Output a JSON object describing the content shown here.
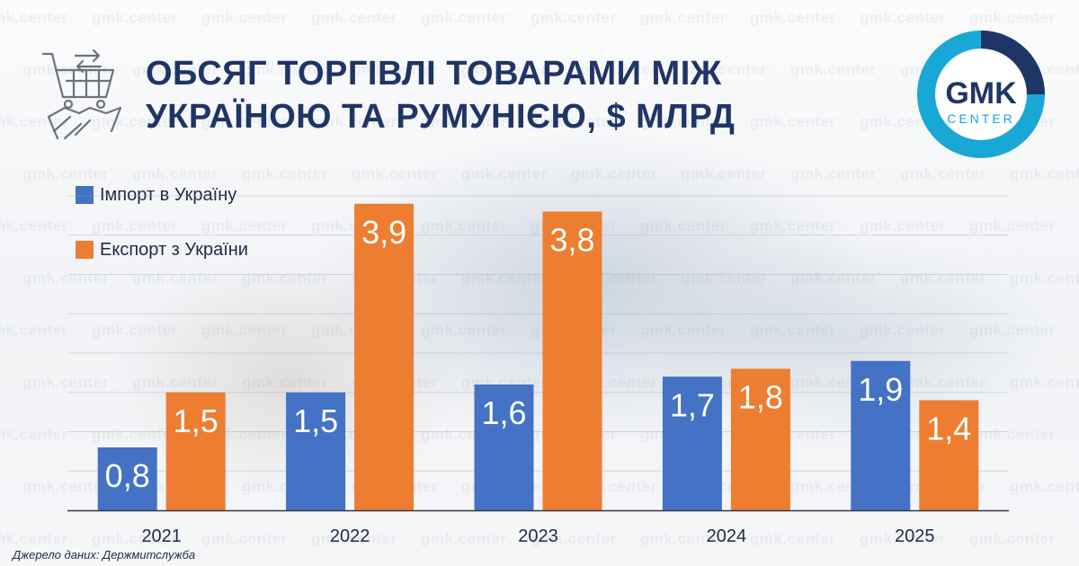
{
  "header": {
    "title_line1": "ОБСЯГ ТОРГІВЛІ ТОВАРАМИ МІЖ",
    "title_line2": "УКРАЇНОЮ ТА РУМУНІЄЮ, $ МЛРД"
  },
  "logo": {
    "top_text": "GMK",
    "bottom_text": "CENTER"
  },
  "watermark_text": "gmk.center",
  "legend": [
    {
      "label": "Імпорт в Україну",
      "color": "#4472c4"
    },
    {
      "label": "Експорт з України",
      "color": "#ed7d31"
    }
  ],
  "source": "Джерело даних: Держмитслужба",
  "colors": {
    "title": "#1f3566",
    "import": "#4472c4",
    "export": "#ed7d31",
    "logo_ring": "#19a7d6",
    "logo_dark": "#1f3566"
  },
  "icons": [
    "trade-cart-handshake-icon"
  ],
  "chart_data": {
    "type": "bar",
    "categories": [
      "2021",
      "2022",
      "2023",
      "2024",
      "2025"
    ],
    "series": [
      {
        "name": "Імпорт в Україну",
        "values": [
          0.8,
          1.5,
          1.6,
          1.7,
          1.9
        ],
        "labels": [
          "0,8",
          "1,5",
          "1,6",
          "1,7",
          "1,9"
        ]
      },
      {
        "name": "Експорт з України",
        "values": [
          1.5,
          3.9,
          3.8,
          1.8,
          1.4
        ],
        "labels": [
          "1,5",
          "3,9",
          "3,8",
          "1,8",
          "1,4"
        ]
      }
    ],
    "ylim": [
      0,
      4.2
    ],
    "grid": true,
    "legend_position": "top-left"
  }
}
